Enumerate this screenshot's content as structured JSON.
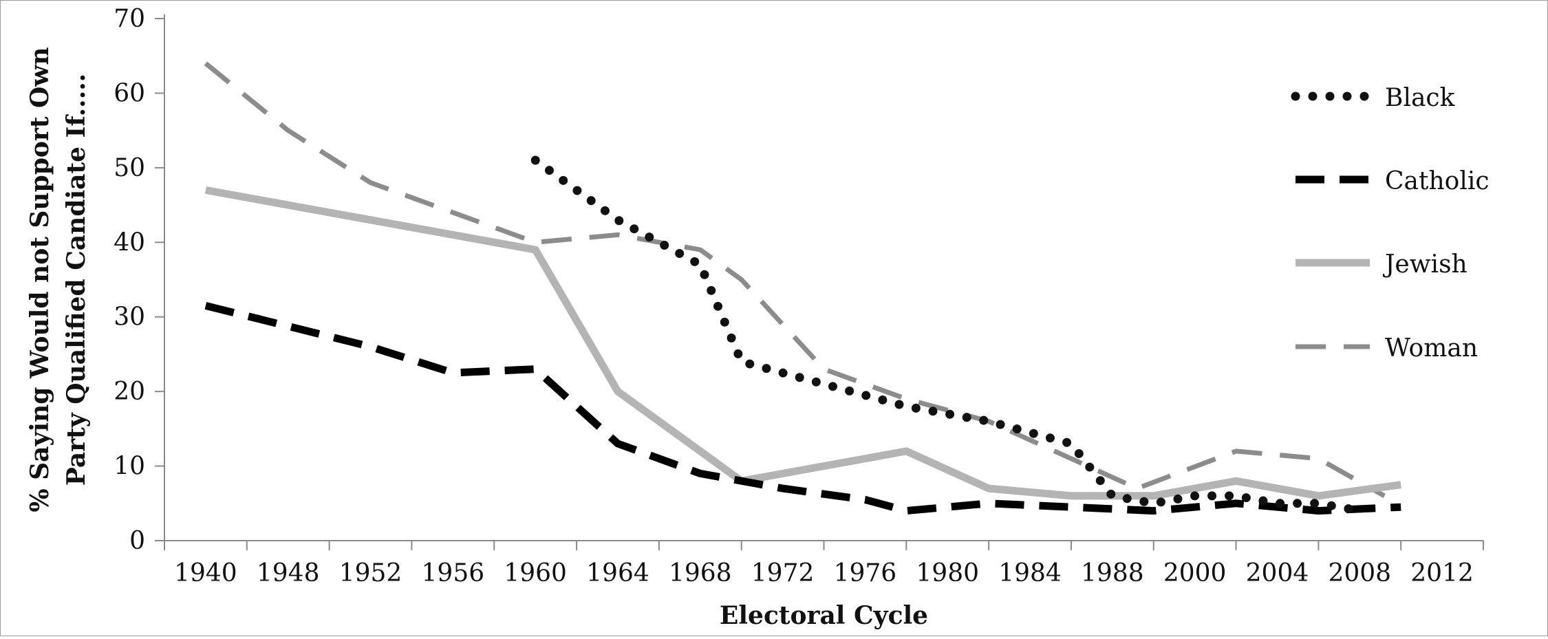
{
  "chart_data": {
    "type": "line",
    "xlabel": "Electoral Cycle",
    "ylabel_lines": [
      "% Saying Would not Support Own",
      "Party Qualified Candiate If....."
    ],
    "categories": [
      "1940",
      "1948",
      "1952",
      "1956",
      "1960",
      "1964",
      "1968",
      "1972",
      "1976",
      "1980",
      "1984",
      "1988",
      "2000",
      "2004",
      "2008",
      "2012"
    ],
    "yticks": [
      0,
      10,
      20,
      30,
      40,
      50,
      60,
      70
    ],
    "ylim": [
      0,
      70
    ],
    "grid": false,
    "legend_position": "right",
    "series": [
      {
        "name": "Black",
        "style": "dotted",
        "color": "#111111",
        "points": [
          [
            4.5,
            51
          ],
          [
            5.5,
            43
          ],
          [
            6.5,
            37
          ],
          [
            7.0,
            24
          ],
          [
            8.0,
            21
          ],
          [
            9.0,
            18
          ],
          [
            10.0,
            16
          ],
          [
            11.0,
            13
          ],
          [
            11.5,
            6
          ],
          [
            12.0,
            5
          ],
          [
            12.5,
            6
          ],
          [
            13.0,
            6
          ],
          [
            13.5,
            5
          ],
          [
            14.0,
            5
          ],
          [
            14.5,
            4
          ]
        ]
      },
      {
        "name": "Catholic",
        "style": "dashed",
        "color": "#000000",
        "points": [
          [
            0.5,
            31.5
          ],
          [
            2.5,
            26
          ],
          [
            3.5,
            22.5
          ],
          [
            4.5,
            23
          ],
          [
            5.5,
            13
          ],
          [
            6.5,
            9
          ],
          [
            7.5,
            7
          ],
          [
            8.5,
            5.5
          ],
          [
            9.0,
            4
          ],
          [
            10.0,
            5
          ],
          [
            11.0,
            4.5
          ],
          [
            12.0,
            4
          ],
          [
            13.0,
            5
          ],
          [
            14.0,
            4
          ],
          [
            15.0,
            4.5
          ]
        ]
      },
      {
        "name": "Jewish",
        "style": "solid",
        "color": "#b4b4b4",
        "points": [
          [
            0.5,
            47
          ],
          [
            4.5,
            39
          ],
          [
            5.5,
            20
          ],
          [
            7.0,
            8
          ],
          [
            9.0,
            12
          ],
          [
            10.0,
            7
          ],
          [
            11.0,
            6
          ],
          [
            12.0,
            6
          ],
          [
            13.0,
            8
          ],
          [
            14.0,
            6
          ],
          [
            15.0,
            7.5
          ]
        ]
      },
      {
        "name": "Woman",
        "style": "dashed",
        "color": "#8c8c8c",
        "points": [
          [
            0.5,
            64
          ],
          [
            1.5,
            55
          ],
          [
            2.5,
            48
          ],
          [
            3.5,
            44
          ],
          [
            4.5,
            40
          ],
          [
            5.5,
            41
          ],
          [
            6.5,
            39
          ],
          [
            7.0,
            35
          ],
          [
            8.0,
            23
          ],
          [
            9.0,
            19
          ],
          [
            10.0,
            16
          ],
          [
            11.0,
            11
          ],
          [
            11.8,
            7
          ],
          [
            13.0,
            12
          ],
          [
            14.0,
            11
          ],
          [
            14.8,
            6
          ]
        ]
      }
    ]
  }
}
